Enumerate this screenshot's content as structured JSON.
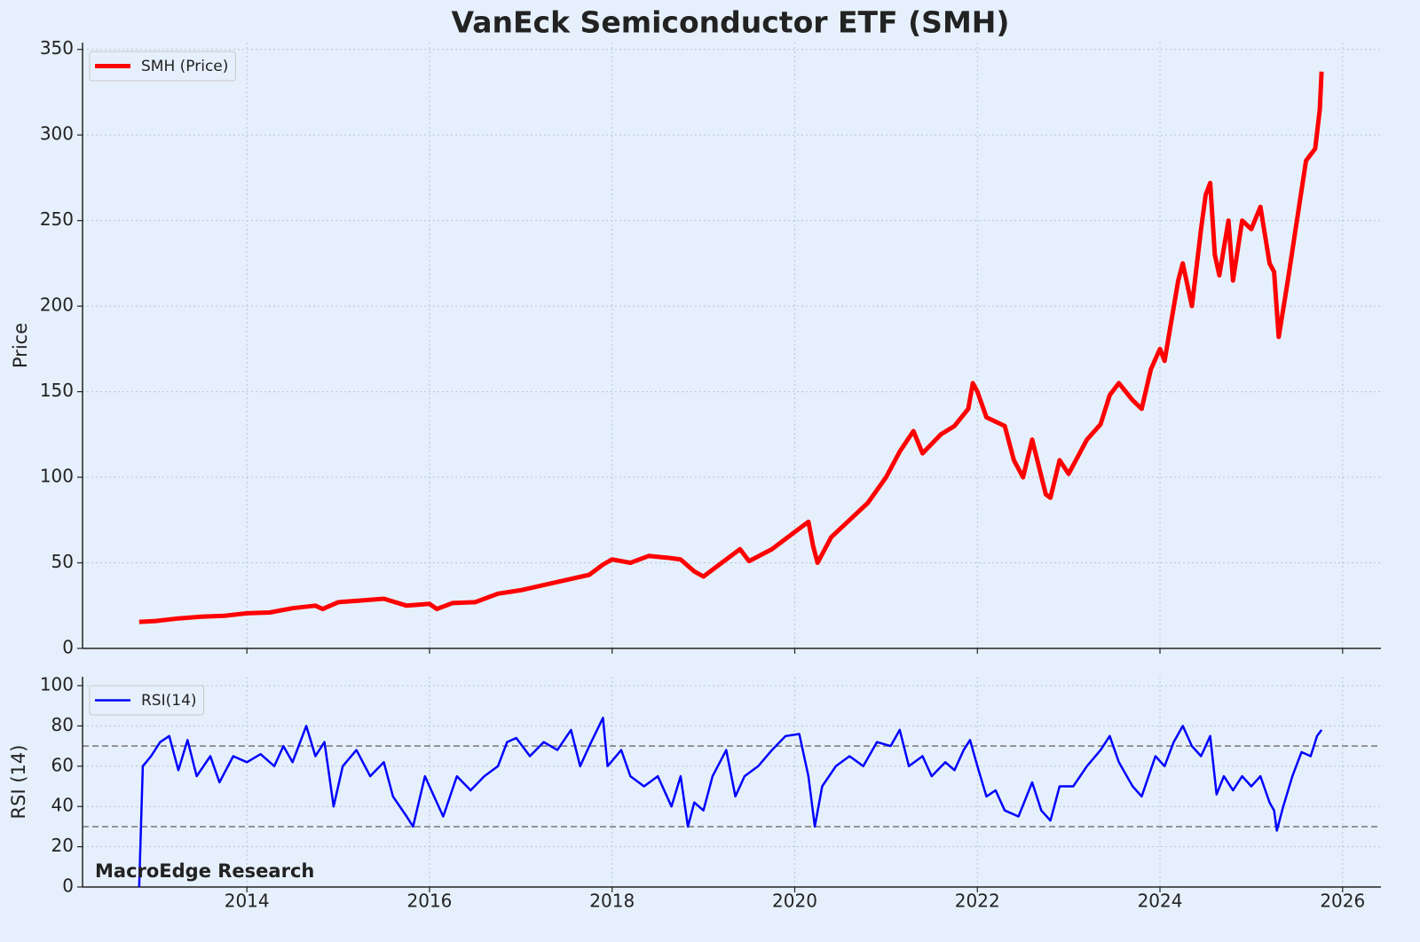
{
  "chart_data": [
    {
      "type": "line",
      "title": "VanEck Semiconductor ETF (SMH)",
      "ylabel": "Price",
      "ylabel_color": "#ff0000",
      "xlim": [
        2012.2,
        2026.42
      ],
      "ylim": [
        0,
        354
      ],
      "yticks": [
        0,
        50,
        100,
        150,
        200,
        250,
        300,
        350
      ],
      "xticks": [
        2014,
        2016,
        2018,
        2020,
        2022,
        2024,
        2026
      ],
      "grid": true,
      "legend": "upper left",
      "x": [
        2012.82,
        2013.0,
        2013.25,
        2013.5,
        2013.75,
        2014.0,
        2014.25,
        2014.5,
        2014.75,
        2014.83,
        2015.0,
        2015.25,
        2015.5,
        2015.75,
        2016.0,
        2016.08,
        2016.25,
        2016.5,
        2016.75,
        2017.0,
        2017.25,
        2017.5,
        2017.75,
        2017.9,
        2018.0,
        2018.2,
        2018.4,
        2018.6,
        2018.75,
        2018.9,
        2019.0,
        2019.2,
        2019.4,
        2019.5,
        2019.75,
        2020.0,
        2020.15,
        2020.2,
        2020.25,
        2020.4,
        2020.6,
        2020.8,
        2021.0,
        2021.15,
        2021.3,
        2021.4,
        2021.6,
        2021.75,
        2021.9,
        2021.95,
        2022.0,
        2022.1,
        2022.3,
        2022.4,
        2022.5,
        2022.6,
        2022.75,
        2022.8,
        2022.9,
        2023.0,
        2023.2,
        2023.35,
        2023.45,
        2023.55,
        2023.7,
        2023.8,
        2023.9,
        2024.0,
        2024.05,
        2024.2,
        2024.25,
        2024.35,
        2024.45,
        2024.5,
        2024.55,
        2024.6,
        2024.65,
        2024.75,
        2024.8,
        2024.9,
        2025.0,
        2025.1,
        2025.2,
        2025.25,
        2025.3,
        2025.4,
        2025.5,
        2025.6,
        2025.7,
        2025.75,
        2025.77
      ],
      "series": [
        {
          "name": "SMH (Price)",
          "color": "#ff0000",
          "values": [
            15.5,
            16,
            17.5,
            18.5,
            19,
            20.5,
            21,
            23.5,
            25,
            23,
            27,
            28,
            29,
            25,
            26,
            23,
            26.5,
            27,
            32,
            34,
            37,
            40,
            43,
            49,
            52,
            50,
            54,
            53,
            52,
            45,
            42,
            50,
            58,
            51,
            58,
            68,
            74,
            60,
            50,
            65,
            75,
            85,
            100,
            115,
            127,
            114,
            125,
            130,
            140,
            155,
            150,
            135,
            130,
            110,
            100,
            122,
            90,
            88,
            110,
            102,
            122,
            131,
            148,
            155,
            145,
            140,
            163,
            175,
            168,
            215,
            225,
            200,
            245,
            265,
            272,
            230,
            218,
            250,
            215,
            250,
            245,
            258,
            225,
            220,
            182,
            215,
            250,
            285,
            292,
            315,
            337
          ]
        }
      ]
    },
    {
      "type": "line",
      "ylabel": "RSI (14)",
      "ylabel_color": "#0000ff",
      "xlim": [
        2012.2,
        2026.42
      ],
      "ylim": [
        0,
        100
      ],
      "yticks": [
        0,
        20,
        40,
        60,
        80,
        100
      ],
      "xticks": [
        2014,
        2016,
        2018,
        2020,
        2022,
        2024,
        2026
      ],
      "grid": true,
      "legend": "upper left",
      "reference_lines": [
        70,
        30
      ],
      "reference_color": "#808080",
      "annotation": "MacroEdge Research",
      "x": [
        2012.82,
        2012.86,
        2012.95,
        2013.05,
        2013.15,
        2013.25,
        2013.35,
        2013.45,
        2013.6,
        2013.7,
        2013.85,
        2014.0,
        2014.15,
        2014.3,
        2014.4,
        2014.5,
        2014.65,
        2014.75,
        2014.85,
        2014.95,
        2015.05,
        2015.2,
        2015.35,
        2015.5,
        2015.6,
        2015.75,
        2015.82,
        2015.95,
        2016.05,
        2016.15,
        2016.3,
        2016.45,
        2016.6,
        2016.75,
        2016.85,
        2016.95,
        2017.1,
        2017.25,
        2017.4,
        2017.55,
        2017.65,
        2017.75,
        2017.9,
        2017.95,
        2018.1,
        2018.2,
        2018.35,
        2018.5,
        2018.65,
        2018.75,
        2018.83,
        2018.9,
        2019.0,
        2019.1,
        2019.25,
        2019.35,
        2019.45,
        2019.6,
        2019.75,
        2019.9,
        2020.05,
        2020.15,
        2020.22,
        2020.3,
        2020.45,
        2020.6,
        2020.75,
        2020.9,
        2021.05,
        2021.15,
        2021.25,
        2021.4,
        2021.5,
        2021.65,
        2021.75,
        2021.85,
        2021.92,
        2022.0,
        2022.1,
        2022.2,
        2022.3,
        2022.45,
        2022.6,
        2022.7,
        2022.8,
        2022.9,
        2023.05,
        2023.2,
        2023.35,
        2023.45,
        2023.55,
        2023.7,
        2023.8,
        2023.95,
        2024.05,
        2024.15,
        2024.25,
        2024.35,
        2024.45,
        2024.55,
        2024.62,
        2024.7,
        2024.8,
        2024.9,
        2025.0,
        2025.1,
        2025.2,
        2025.25,
        2025.28,
        2025.35,
        2025.45,
        2025.55,
        2025.65,
        2025.72,
        2025.77
      ],
      "series": [
        {
          "name": "RSI(14)",
          "color": "#0000ff",
          "values": [
            0,
            60,
            65,
            72,
            75,
            58,
            73,
            55,
            65,
            52,
            65,
            62,
            66,
            60,
            70,
            62,
            80,
            65,
            72,
            40,
            60,
            68,
            55,
            62,
            45,
            35,
            30,
            55,
            45,
            35,
            55,
            48,
            55,
            60,
            72,
            74,
            65,
            72,
            68,
            78,
            60,
            70,
            84,
            60,
            68,
            55,
            50,
            55,
            40,
            55,
            30,
            42,
            38,
            55,
            68,
            45,
            55,
            60,
            68,
            75,
            76,
            55,
            30,
            50,
            60,
            65,
            60,
            72,
            70,
            78,
            60,
            65,
            55,
            62,
            58,
            68,
            73,
            60,
            45,
            48,
            38,
            35,
            52,
            38,
            33,
            50,
            50,
            60,
            68,
            75,
            62,
            50,
            45,
            65,
            60,
            72,
            80,
            70,
            65,
            75,
            46,
            55,
            48,
            55,
            50,
            55,
            42,
            38,
            28,
            40,
            55,
            67,
            65,
            75,
            78
          ]
        }
      ]
    }
  ]
}
